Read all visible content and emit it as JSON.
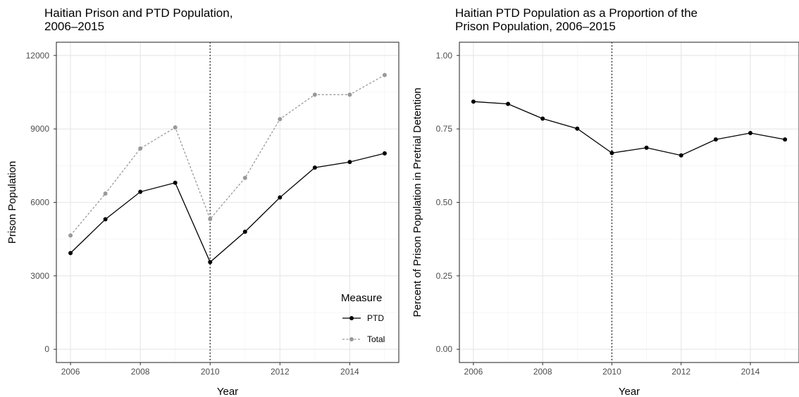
{
  "chart_data": [
    {
      "type": "line",
      "title": [
        "Haitian Prison and PTD Population,",
        "2006–2015"
      ],
      "xlabel": "Year",
      "ylabel": "Prison Population",
      "xlim": [
        2006,
        2015
      ],
      "ylim": [
        0,
        12000
      ],
      "x": [
        2006,
        2007,
        2008,
        2009,
        2010,
        2011,
        2012,
        2013,
        2014,
        2015
      ],
      "x_ticks": [
        2006,
        2008,
        2010,
        2012,
        2014
      ],
      "x_tick_labels": [
        "2006",
        "2008",
        "2010",
        "2012",
        "2014"
      ],
      "y_ticks": [
        0,
        3000,
        6000,
        9000,
        12000
      ],
      "y_tick_labels": [
        "0",
        "3000",
        "6000",
        "9000",
        "12000"
      ],
      "vline": 2010,
      "grid": true,
      "legend": {
        "title": "Measure",
        "position": "bottom-right"
      },
      "series": [
        {
          "name": "PTD",
          "color": "#000000",
          "dashed": false,
          "values": [
            3930,
            5310,
            6430,
            6800,
            3560,
            4800,
            6200,
            7420,
            7650,
            8000
          ]
        },
        {
          "name": "Total",
          "color": "#999999",
          "dashed": true,
          "values": [
            4650,
            6360,
            8200,
            9060,
            5320,
            7000,
            9400,
            10400,
            10400,
            11200
          ]
        }
      ]
    },
    {
      "type": "line",
      "title": [
        "Haitian PTD Population as a Proportion of the",
        "Prison Population, 2006–2015"
      ],
      "xlabel": "Year",
      "ylabel": "Percent of Prison Population in Pretrial Detention",
      "xlim": [
        2006,
        2015
      ],
      "ylim": [
        0,
        1
      ],
      "x": [
        2006,
        2007,
        2008,
        2009,
        2010,
        2011,
        2012,
        2013,
        2014,
        2015
      ],
      "x_ticks": [
        2006,
        2008,
        2010,
        2012,
        2014
      ],
      "x_tick_labels": [
        "2006",
        "2008",
        "2010",
        "2012",
        "2014"
      ],
      "y_ticks": [
        0,
        0.25,
        0.5,
        0.75,
        1
      ],
      "y_tick_labels": [
        "0.00",
        "0.25",
        "0.50",
        "0.75",
        "1.00"
      ],
      "vline": 2010,
      "grid": true,
      "series": [
        {
          "name": "",
          "color": "#000000",
          "dashed": false,
          "values": [
            0.843,
            0.835,
            0.785,
            0.751,
            0.668,
            0.686,
            0.66,
            0.714,
            0.736,
            0.714
          ]
        }
      ]
    }
  ]
}
